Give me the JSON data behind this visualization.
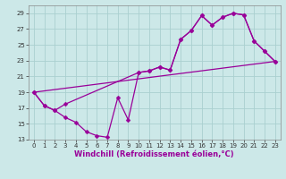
{
  "background_color": "#cce8e8",
  "grid_color": "#aad0d0",
  "line_color": "#990099",
  "xlim": [
    -0.5,
    23.5
  ],
  "ylim": [
    13,
    30
  ],
  "xticks": [
    0,
    1,
    2,
    3,
    4,
    5,
    6,
    7,
    8,
    9,
    10,
    11,
    12,
    13,
    14,
    15,
    16,
    17,
    18,
    19,
    20,
    21,
    22,
    23
  ],
  "yticks": [
    13,
    15,
    17,
    19,
    21,
    23,
    25,
    27,
    29
  ],
  "tick_fontsize": 5.0,
  "xlabel": "Windchill (Refroidissement éolien,°C)",
  "xlabel_fontsize": 6.0,
  "lw": 0.9,
  "ms": 2.5,
  "line1_x": [
    0,
    1,
    2,
    3,
    4,
    5,
    6,
    7,
    8,
    9,
    10,
    11,
    12,
    13,
    14,
    15,
    16,
    17,
    18,
    19,
    20,
    21,
    22,
    23
  ],
  "line1_y": [
    19.0,
    17.3,
    16.7,
    15.8,
    15.2,
    14.0,
    13.5,
    13.3,
    18.3,
    15.5,
    21.5,
    21.7,
    22.2,
    21.8,
    25.7,
    26.8,
    28.7,
    27.5,
    28.5,
    29.0,
    28.8,
    25.5,
    24.2,
    22.9
  ],
  "line2_x": [
    0,
    1,
    2,
    3,
    10,
    11,
    12,
    13,
    14,
    15,
    16,
    17,
    18,
    19,
    20,
    21,
    22,
    23
  ],
  "line2_y": [
    19.0,
    17.3,
    16.7,
    17.5,
    21.5,
    21.7,
    22.2,
    21.8,
    25.7,
    26.8,
    28.7,
    27.5,
    28.5,
    29.0,
    28.8,
    25.5,
    24.2,
    22.9
  ],
  "line3_x": [
    0,
    23
  ],
  "line3_y": [
    19.0,
    22.9
  ]
}
